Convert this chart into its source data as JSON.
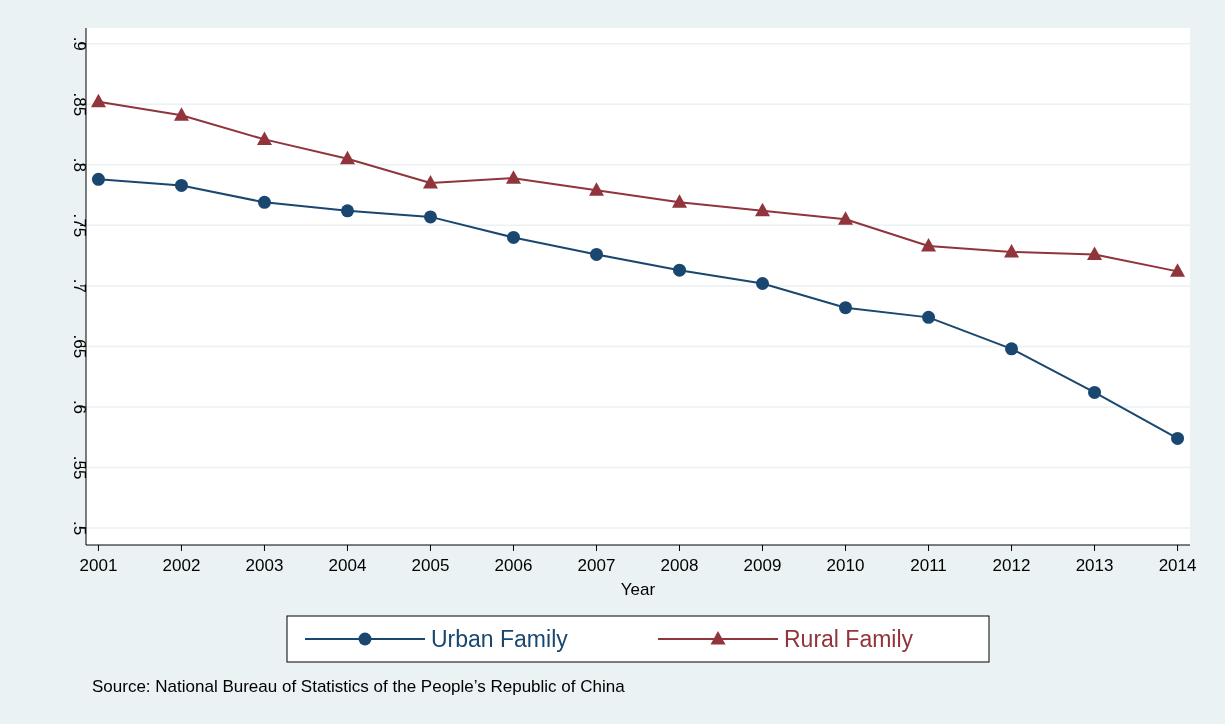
{
  "chart_data": {
    "type": "line",
    "xlabel": "Year",
    "x": [
      2001,
      2002,
      2003,
      2004,
      2005,
      2006,
      2007,
      2008,
      2009,
      2010,
      2011,
      2012,
      2013,
      2014
    ],
    "series": [
      {
        "name": "Urban Family",
        "color": "#1a476f",
        "marker": "circle",
        "values": [
          0.788,
          0.783,
          0.769,
          0.762,
          0.757,
          0.74,
          0.726,
          0.713,
          0.702,
          0.682,
          0.674,
          0.648,
          0.612,
          0.574
        ]
      },
      {
        "name": "Rural Family",
        "color": "#90353b",
        "marker": "triangle",
        "values": [
          0.852,
          0.841,
          0.821,
          0.805,
          0.785,
          0.789,
          0.779,
          0.769,
          0.762,
          0.755,
          0.733,
          0.728,
          0.726,
          0.712
        ]
      }
    ],
    "xlim": [
      2000.85,
      2014.15
    ],
    "xticks": [
      2001,
      2002,
      2003,
      2004,
      2005,
      2006,
      2007,
      2008,
      2009,
      2010,
      2011,
      2012,
      2013,
      2014
    ],
    "ylim": [
      0.486,
      0.913
    ],
    "yticks": [
      {
        "value": 0.5,
        "label": ".5"
      },
      {
        "value": 0.55,
        "label": ".55"
      },
      {
        "value": 0.6,
        "label": ".6"
      },
      {
        "value": 0.65,
        "label": ".65"
      },
      {
        "value": 0.7,
        "label": ".7"
      },
      {
        "value": 0.75,
        "label": ".75"
      },
      {
        "value": 0.8,
        "label": ".8"
      },
      {
        "value": 0.85,
        "label": ".85"
      },
      {
        "value": 0.9,
        "label": ".9"
      }
    ],
    "grid": "y",
    "legend": "bottom",
    "line_style": "solid",
    "annotations": [
      "Source: National Bureau of Statistics of the People’s Republic of China"
    ]
  }
}
